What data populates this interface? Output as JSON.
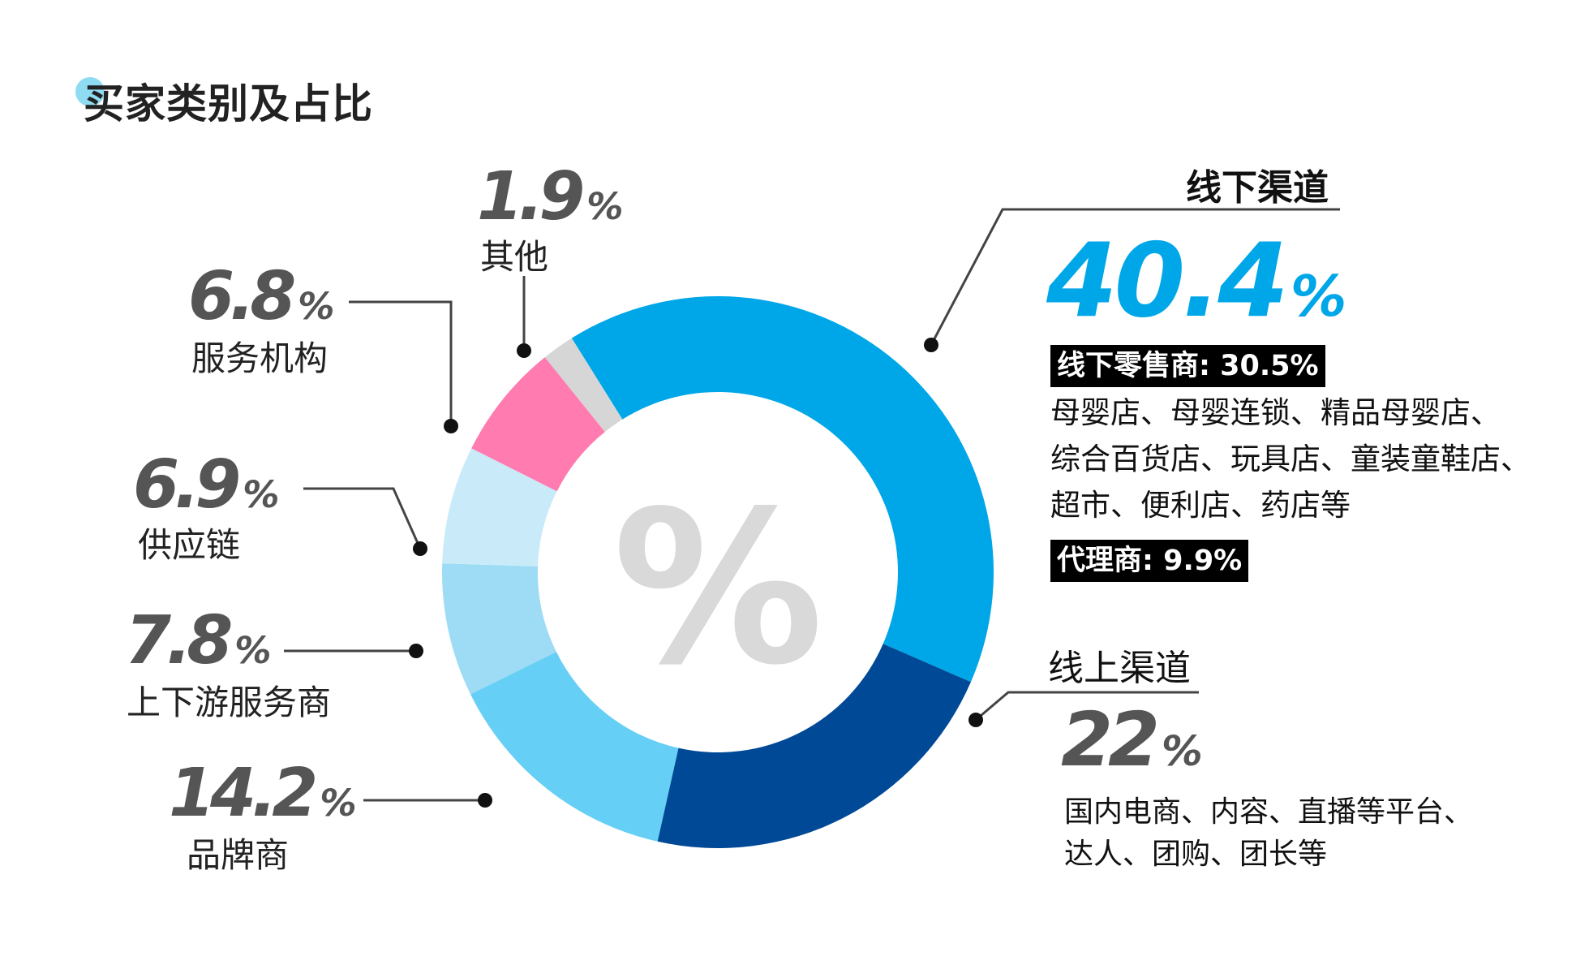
{
  "title": "买家类别及占比",
  "center_glyph": "%",
  "colors": {
    "offline": "#00a7e8",
    "online": "#004996",
    "brand": "#66cff5",
    "upstream": "#9edcf5",
    "supply": "#c9ebf9",
    "service": "#ff7bb0",
    "other": "#d6d6d6",
    "leader": "#444444"
  },
  "chart_data": {
    "type": "pie",
    "donut": true,
    "slices": [
      {
        "key": "offline",
        "label": "线下渠道",
        "value": 40.4,
        "pct_text": "40.4",
        "unit": "%"
      },
      {
        "key": "online",
        "label": "线上渠道",
        "value": 22,
        "pct_text": "22",
        "unit": "%"
      },
      {
        "key": "brand",
        "label": "品牌商",
        "value": 14.2,
        "pct_text": "14.2",
        "unit": "%"
      },
      {
        "key": "upstream",
        "label": "上下游服务商",
        "value": 7.8,
        "pct_text": "7.8",
        "unit": "%"
      },
      {
        "key": "supply",
        "label": "供应链",
        "value": 6.9,
        "pct_text": "6.9",
        "unit": "%"
      },
      {
        "key": "service",
        "label": "服务机构",
        "value": 6.8,
        "pct_text": "6.8",
        "unit": "%"
      },
      {
        "key": "other",
        "label": "其他",
        "value": 1.9,
        "pct_text": "1.9",
        "unit": "%"
      }
    ]
  },
  "offline_detail": {
    "retailer_tag": "线下零售商: 30.5%",
    "retailer_lines": [
      "母婴店、母婴连锁、精品母婴店、",
      "综合百货店、玩具店、童装童鞋店、",
      "超市、便利店、药店等"
    ],
    "agent_tag": "代理商: 9.9%"
  },
  "online_detail": {
    "lines": [
      "国内电商、内容、直播等平台、",
      "达人、团购、团长等"
    ]
  }
}
